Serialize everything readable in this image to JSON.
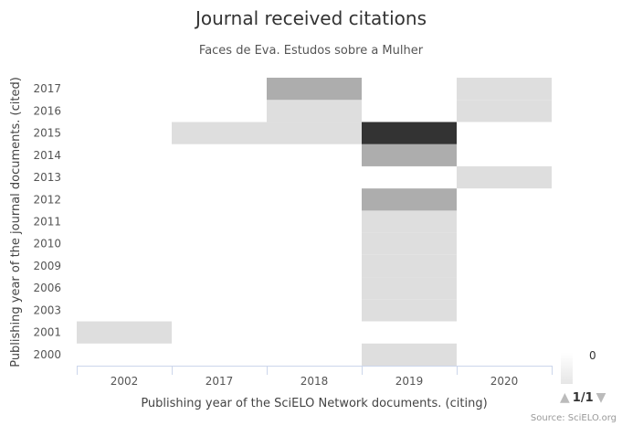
{
  "chart_data": {
    "type": "heatmap",
    "title": "Journal received citations",
    "subtitle": "Faces de Eva. Estudos sobre a Mulher",
    "xlabel": "Publishing year of the SciELO Network documents. (citing)",
    "ylabel": "Publishing year of the journal documents. (cited)",
    "x_categories": [
      "2002",
      "2017",
      "2018",
      "2019",
      "2020"
    ],
    "y_categories": [
      "2000",
      "2001",
      "2003",
      "2006",
      "2009",
      "2010",
      "2011",
      "2012",
      "2013",
      "2014",
      "2015",
      "2016",
      "2017"
    ],
    "cells": [
      {
        "x": "2002",
        "y": "2001",
        "value": 1
      },
      {
        "x": "2017",
        "y": "2015",
        "value": 1
      },
      {
        "x": "2018",
        "y": "2015",
        "value": 1
      },
      {
        "x": "2018",
        "y": "2016",
        "value": 1
      },
      {
        "x": "2018",
        "y": "2017",
        "value": 2
      },
      {
        "x": "2019",
        "y": "2000",
        "value": 1
      },
      {
        "x": "2019",
        "y": "2003",
        "value": 1
      },
      {
        "x": "2019",
        "y": "2006",
        "value": 1
      },
      {
        "x": "2019",
        "y": "2009",
        "value": 1
      },
      {
        "x": "2019",
        "y": "2010",
        "value": 1
      },
      {
        "x": "2019",
        "y": "2011",
        "value": 1
      },
      {
        "x": "2019",
        "y": "2012",
        "value": 2
      },
      {
        "x": "2019",
        "y": "2014",
        "value": 2
      },
      {
        "x": "2019",
        "y": "2015",
        "value": 5
      },
      {
        "x": "2020",
        "y": "2013",
        "value": 1
      },
      {
        "x": "2020",
        "y": "2016",
        "value": 1
      },
      {
        "x": "2020",
        "y": "2017",
        "value": 1
      }
    ],
    "color_min": "#ffffff",
    "color_max": "#333333",
    "legend": {
      "min_label": "0",
      "position": "bottom-right",
      "page": "1/1"
    },
    "credit": "Source: SciELO.org"
  }
}
